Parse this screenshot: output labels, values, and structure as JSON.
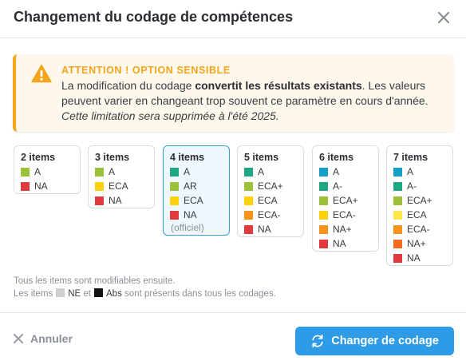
{
  "dialog": {
    "title": "Changement du codage de compétences",
    "close_icon": "close-icon"
  },
  "warning": {
    "icon": "warning-triangle-icon",
    "title": "ATTENTION ! OPTION SENSIBLE",
    "text_before": "La modification du codage ",
    "text_bold": "convertit les résultats existants",
    "text_after": ". Les valeurs peuvent varier en changeant trop souvent ce paramètre en cours d'année. ",
    "text_italic": "Cette limitation sera supprimée à l'été 2025."
  },
  "options": [
    {
      "title": "2 items",
      "items": [
        {
          "label": "A",
          "color": "#9ac139"
        },
        {
          "label": "NA",
          "color": "#e03a3e"
        }
      ]
    },
    {
      "title": "3 items",
      "items": [
        {
          "label": "A",
          "color": "#9ac139"
        },
        {
          "label": "ECA",
          "color": "#fdd10c"
        },
        {
          "label": "NA",
          "color": "#e03a3e"
        }
      ]
    },
    {
      "title": "4 items",
      "selected": true,
      "items": [
        {
          "label": "A",
          "color": "#1ea685"
        },
        {
          "label": "AR",
          "color": "#9ac139"
        },
        {
          "label": "ECA",
          "color": "#fdd10c"
        },
        {
          "label": "NA",
          "color": "#e03a3e"
        }
      ],
      "note": "(officiel)"
    },
    {
      "title": "5 items",
      "items": [
        {
          "label": "A",
          "color": "#1ea685"
        },
        {
          "label": "ECA+",
          "color": "#9ac139"
        },
        {
          "label": "ECA",
          "color": "#fdd10c"
        },
        {
          "label": "ECA-",
          "color": "#f7941d"
        },
        {
          "label": "NA",
          "color": "#e03a3e"
        }
      ]
    },
    {
      "title": "6 items",
      "items": [
        {
          "label": "A",
          "color": "#16a0c8"
        },
        {
          "label": "A-",
          "color": "#1ea685"
        },
        {
          "label": "ECA+",
          "color": "#9ac139"
        },
        {
          "label": "ECA-",
          "color": "#fdd10c"
        },
        {
          "label": "NA+",
          "color": "#f7941d"
        },
        {
          "label": "NA",
          "color": "#e03a3e"
        }
      ]
    },
    {
      "title": "7 items",
      "items": [
        {
          "label": "A",
          "color": "#16a0c8"
        },
        {
          "label": "A-",
          "color": "#1ea685"
        },
        {
          "label": "ECA+",
          "color": "#9ac139"
        },
        {
          "label": "ECA",
          "color": "#fde74c"
        },
        {
          "label": "ECA-",
          "color": "#f7941d"
        },
        {
          "label": "NA+",
          "color": "#f36b21"
        },
        {
          "label": "NA",
          "color": "#e03a3e"
        }
      ]
    }
  ],
  "note": {
    "line1": "Tous les items sont modifiables ensuite.",
    "line2_start": "Les items",
    "ne_label": "NE",
    "ne_color": "#cfcfcf",
    "et": "et",
    "abs_label": "Abs",
    "abs_color": "#111111",
    "line2_end": "sont présents dans tous les codages."
  },
  "footer": {
    "cancel_label": "Annuler",
    "submit_label": "Changer de codage",
    "accent": "#2e9be6"
  }
}
